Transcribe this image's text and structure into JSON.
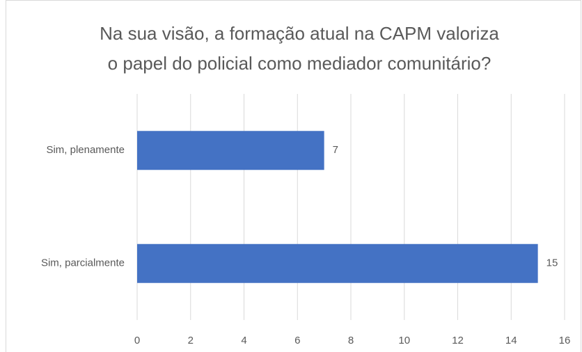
{
  "chart_data": {
    "type": "bar",
    "orientation": "horizontal",
    "title": [
      "Na sua visão, a formação atual na CAPM valoriza",
      "o papel do policial como mediador comunitário?"
    ],
    "categories": [
      "Sim, plenamente",
      "Sim, parcialmente"
    ],
    "values": [
      7,
      15
    ],
    "color": "#4472c4",
    "xlim": [
      0,
      16
    ],
    "xticks": [
      0,
      2,
      4,
      6,
      8,
      10,
      12,
      14,
      16
    ],
    "grid": true
  }
}
